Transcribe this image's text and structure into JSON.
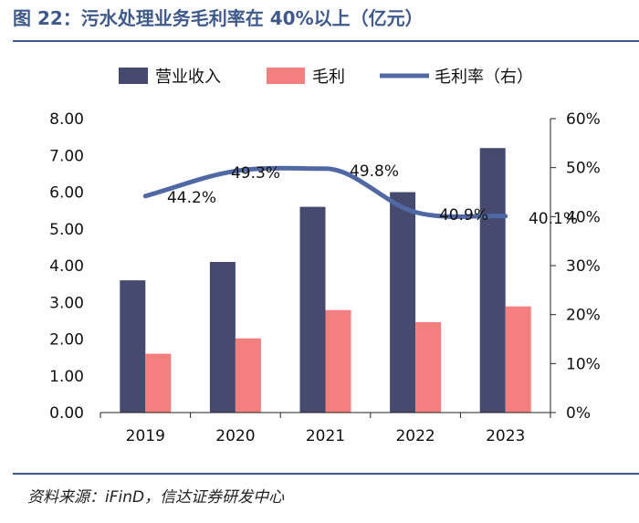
{
  "figure": {
    "title": "图 22：污水处理业务毛利率在 40%以上（亿元）",
    "source": "资料来源：iFinD，信达证券研发中心"
  },
  "colors": {
    "title": "#3f5a8a",
    "revenue": "#454a6e",
    "gross_profit": "#f47f7f",
    "margin_line": "#5068a3"
  },
  "chart_data": {
    "type": "bar",
    "title": "污水处理业务毛利率在 40%以上（亿元）",
    "categories": [
      "2019",
      "2020",
      "2021",
      "2022",
      "2023"
    ],
    "series": [
      {
        "name": "营业收入",
        "type": "bar",
        "axis": "left",
        "values": [
          3.6,
          4.1,
          5.6,
          6.0,
          7.2
        ]
      },
      {
        "name": "毛利",
        "type": "bar",
        "axis": "left",
        "values": [
          1.6,
          2.02,
          2.79,
          2.46,
          2.89
        ]
      },
      {
        "name": "毛利率（右）",
        "type": "line",
        "axis": "right",
        "values": [
          44.2,
          49.3,
          49.8,
          40.9,
          40.1
        ]
      }
    ],
    "data_labels": [
      "44.2%",
      "49.3%",
      "49.8%",
      "40.9%",
      "40.1%"
    ],
    "y_left": {
      "min": 0,
      "max": 8,
      "step": 1,
      "tick_labels": [
        "0.00",
        "1.00",
        "2.00",
        "3.00",
        "4.00",
        "5.00",
        "6.00",
        "7.00",
        "8.00"
      ]
    },
    "y_right": {
      "min": 0,
      "max": 60,
      "step": 10,
      "tick_labels": [
        "0%",
        "10%",
        "20%",
        "30%",
        "40%",
        "50%",
        "60%"
      ]
    },
    "legend_position": "top",
    "grid": false
  }
}
